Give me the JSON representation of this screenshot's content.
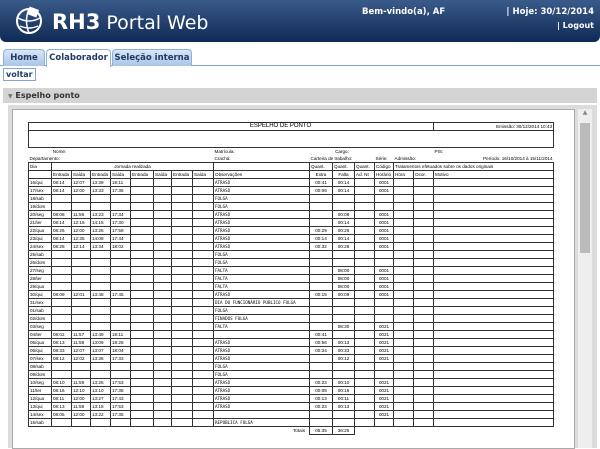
{
  "header": {
    "brand_bold": "RH3",
    "brand_rest": "Portal Web",
    "welcome": "Bem-vindo(a), AF",
    "today": "| Hoje: 30/12/2014",
    "logout": "| Logout"
  },
  "tabs": [
    {
      "label": "Home"
    },
    {
      "label": "Colaborador",
      "active": true
    },
    {
      "label": "Seleção interna"
    }
  ],
  "back_label": "voltar",
  "panel_title": "Espelho ponto",
  "report": {
    "title": "ESPELHO DE PONTO",
    "emissao": "Emissão: 30/12/2014 10:43",
    "nome": "Nome:",
    "matricula": "Matrícula:",
    "cargo": "Cargo:",
    "pis": "PIS:",
    "departamento": "Departamento:",
    "cracha": "Crachá:",
    "carteira": "Carteira de trabalho:",
    "serie": "Série:",
    "admissao": "Admissão:",
    "periodo": "Período: 16/10/2014 à 15/11/2014",
    "h_dia": "Dia",
    "h_jornada": "Jornada realizada",
    "h_qextra": "Quant.",
    "h_qfalta": "Quant.",
    "h_qad": "Quant.",
    "h_codigo": "Código",
    "h_trat": "Tratamentos efetuados sobre os dados originais",
    "h_entrada": "Entrada",
    "h_saida": "Saída",
    "h_obs": "Observações",
    "h_extra": "Extra",
    "h_falta": "Falta",
    "h_adnt": "Ad. Nt",
    "h_horario": "Horário",
    "h_hora": "Hora",
    "h_ocor": "Ocor.",
    "h_motivo": "Motivo",
    "totais_label": "Totais",
    "total_extra": "05:35",
    "total_falta": "36:25",
    "rows": [
      [
        "16/qui",
        "08:14",
        "12:07",
        "13:39",
        "18:11",
        "ATRASO",
        "00:41",
        "00:14",
        "0001"
      ],
      [
        "17/sex",
        "08:14",
        "12:00",
        "13:33",
        "17:36",
        "ATRASO",
        "00:06",
        "00:14",
        "0001"
      ],
      [
        "18/sab",
        "",
        "",
        "",
        "",
        "FOLGA",
        "",
        "",
        ""
      ],
      [
        "19/dom",
        "",
        "",
        "",
        "",
        "FOLGA",
        "",
        "",
        ""
      ],
      [
        "20/seg",
        "08:08",
        "11:56",
        "13:23",
        "17:34",
        "ATRASO",
        "",
        "00:08",
        "0001"
      ],
      [
        "21/ter",
        "08:14",
        "12:16",
        "14:15",
        "17:30",
        "ATRASO",
        "",
        "00:14",
        "0001"
      ],
      [
        "22/qua",
        "08:26",
        "12:00",
        "13:25",
        "17:59",
        "ATRASO",
        "00:29",
        "00:26",
        "0001"
      ],
      [
        "23/qui",
        "08:14",
        "12:35",
        "14:08",
        "17:44",
        "ATRASO",
        "00:14",
        "00:14",
        "0001"
      ],
      [
        "24/sex",
        "08:28",
        "12:14",
        "13:34",
        "18:02",
        "ATRASO",
        "00:32",
        "00:28",
        "0001"
      ],
      [
        "25/sab",
        "",
        "",
        "",
        "",
        "FOLGA",
        "",
        "",
        ""
      ],
      [
        "26/dom",
        "",
        "",
        "",
        "",
        "FOLGA",
        "",
        "",
        ""
      ],
      [
        "27/seg",
        "",
        "",
        "",
        "",
        "FALTA",
        "",
        "08:00",
        "0001"
      ],
      [
        "28/ter",
        "",
        "",
        "",
        "",
        "FALTA",
        "",
        "08:00",
        "0001"
      ],
      [
        "29/qua",
        "",
        "",
        "",
        "",
        "FALTA",
        "",
        "08:00",
        "0001"
      ],
      [
        "30/qui",
        "08:09",
        "12:01",
        "13:48",
        "17:45",
        "ATRASO",
        "00:15",
        "00:09",
        "0001"
      ],
      [
        "31/sex",
        "",
        "",
        "",
        "",
        "DIA DO FUNCIONÁRIO PÚBLICO FOLGA",
        "",
        "",
        ""
      ],
      [
        "01/sab",
        "",
        "",
        "",
        "",
        "FOLGA",
        "",
        "",
        ""
      ],
      [
        "02/dom",
        "",
        "",
        "",
        "",
        "FINADOS FOLGA",
        "",
        "",
        ""
      ],
      [
        "03/seg",
        "",
        "",
        "",
        "",
        "FALTA",
        "",
        "08:30",
        "0021"
      ],
      [
        "04/ter",
        "08:02",
        "11:57",
        "13:49",
        "18:11",
        "",
        "00:41",
        "",
        "0021"
      ],
      [
        "05/qua",
        "08:13",
        "11:58",
        "13:09",
        "18:26",
        "ATRASO",
        "00:56",
        "00:13",
        "0021"
      ],
      [
        "06/qui",
        "08:33",
        "12:07",
        "13:07",
        "18:04",
        "ATRASO",
        "00:34",
        "00:33",
        "0021"
      ],
      [
        "07/sex",
        "08:12",
        "12:02",
        "13:36",
        "17:33",
        "ATRASO",
        "",
        "00:12",
        "0021"
      ],
      [
        "08/sab",
        "",
        "",
        "",
        "",
        "FOLGA",
        "",
        "",
        ""
      ],
      [
        "09/dom",
        "",
        "",
        "",
        "",
        "FOLGA",
        "",
        "",
        ""
      ],
      [
        "10/seg",
        "08:10",
        "11:59",
        "13:25",
        "17:53",
        "ATRASO",
        "00:23",
        "00:10",
        "0021"
      ],
      [
        "11/ter",
        "08:16",
        "12:10",
        "13:10",
        "17:38",
        "ATRASO",
        "00:08",
        "00:16",
        "0021"
      ],
      [
        "12/qua",
        "08:11",
        "12:00",
        "13:27",
        "17:43",
        "ATRASO",
        "00:13",
        "00:11",
        "0021"
      ],
      [
        "13/qui",
        "08:13",
        "11:58",
        "13:15",
        "17:53",
        "ATRASO",
        "00:23",
        "00:13",
        "0021"
      ],
      [
        "14/sex",
        "08:05",
        "12:00",
        "13:22",
        "17:35",
        "",
        "",
        "",
        "0021"
      ],
      [
        "15/sab",
        "",
        "",
        "",
        "",
        "REPÚBLICA FOLGA",
        "",
        "",
        ""
      ]
    ]
  }
}
